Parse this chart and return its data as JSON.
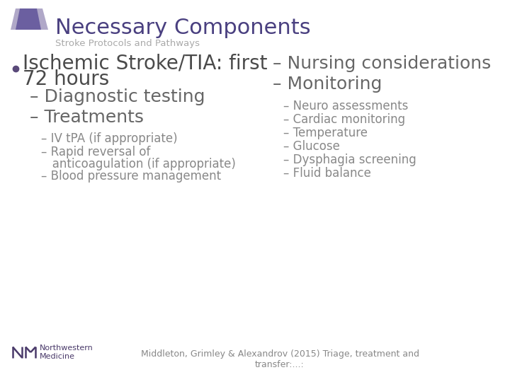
{
  "title": "Necessary Components",
  "subtitle": "Stroke Protocols and Pathways",
  "title_color": "#4a4080",
  "subtitle_color": "#aaaaaa",
  "background_color": "#ffffff",
  "header_bar_color1": "#6b5fa0",
  "header_bar_color2": "#b0a8c8",
  "bullet_color": "#5a4a7a",
  "bullet_text_line1": "Ischemic Stroke/TIA: first",
  "bullet_text_line2": "72 hours",
  "bullet_fontsize": 20,
  "bullet_text_color": "#4a4a4a",
  "left_items": [
    {
      "text": "– Diagnostic testing",
      "level": 1,
      "fontsize": 18,
      "color": "#666666"
    },
    {
      "text": "– Treatments",
      "level": 1,
      "fontsize": 18,
      "color": "#666666"
    },
    {
      "text": "– IV tPA (if appropriate)",
      "level": 2,
      "fontsize": 12,
      "color": "#888888"
    },
    {
      "text": "– Rapid reversal of",
      "level": 2,
      "fontsize": 12,
      "color": "#888888"
    },
    {
      "text": "   anticoagulation (if appropriate)",
      "level": 2,
      "fontsize": 12,
      "color": "#888888"
    },
    {
      "text": "– Blood pressure management",
      "level": 2,
      "fontsize": 12,
      "color": "#888888"
    }
  ],
  "right_items": [
    {
      "text": "– Nursing considerations",
      "level": 1,
      "fontsize": 18,
      "color": "#666666"
    },
    {
      "text": "– Monitoring",
      "level": 1,
      "fontsize": 18,
      "color": "#666666"
    },
    {
      "text": "– Neuro assessments",
      "level": 2,
      "fontsize": 12,
      "color": "#888888"
    },
    {
      "text": "– Cardiac monitoring",
      "level": 2,
      "fontsize": 12,
      "color": "#888888"
    },
    {
      "text": "– Temperature",
      "level": 2,
      "fontsize": 12,
      "color": "#888888"
    },
    {
      "text": "– Glucose",
      "level": 2,
      "fontsize": 12,
      "color": "#888888"
    },
    {
      "text": "– Dysphagia screening",
      "level": 2,
      "fontsize": 12,
      "color": "#888888"
    },
    {
      "text": "– Fluid balance",
      "level": 2,
      "fontsize": 12,
      "color": "#888888"
    }
  ],
  "footer_text": "Middleton, Grimley & Alexandrov (2015) Triage, treatment and\ntransfer:...:",
  "footer_color": "#888888",
  "footer_fontsize": 9,
  "nw_logo_color": "#4a3a6a",
  "nw_text": "Northwestern\nMedicine"
}
